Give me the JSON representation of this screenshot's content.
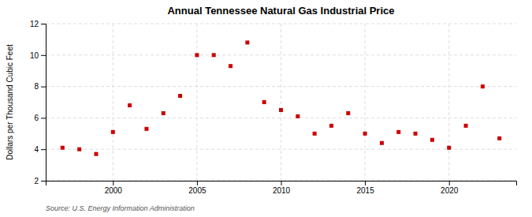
{
  "chart_data": {
    "type": "scatter",
    "title": "Annual Tennessee Natural Gas Industrial Price",
    "y_label": "Dollars per Thousand Cubic Feet",
    "annotations": [
      "Source: U.S. Energy Information Administration"
    ],
    "x": [
      1997,
      1998,
      1999,
      2000,
      2001,
      2002,
      2003,
      2004,
      2005,
      2006,
      2007,
      2008,
      2009,
      2010,
      2011,
      2012,
      2013,
      2014,
      2015,
      2016,
      2017,
      2018,
      2019,
      2020,
      2021,
      2022,
      2023
    ],
    "values": [
      4.1,
      4.0,
      3.7,
      5.1,
      6.8,
      5.3,
      6.3,
      7.4,
      10.0,
      10.0,
      9.3,
      10.8,
      7.0,
      6.5,
      6.1,
      5.0,
      5.5,
      6.3,
      5.0,
      4.4,
      5.1,
      5.0,
      4.6,
      4.1,
      5.5,
      8.0,
      4.7
    ],
    "color": "#cc0000",
    "marker": "square",
    "xlim": [
      1996,
      2024
    ],
    "ylim": [
      2,
      12
    ],
    "xticks": [
      2000,
      2005,
      2010,
      2015,
      2020
    ],
    "yticks": [
      2,
      4,
      6,
      8,
      10,
      12
    ],
    "grid": true
  }
}
